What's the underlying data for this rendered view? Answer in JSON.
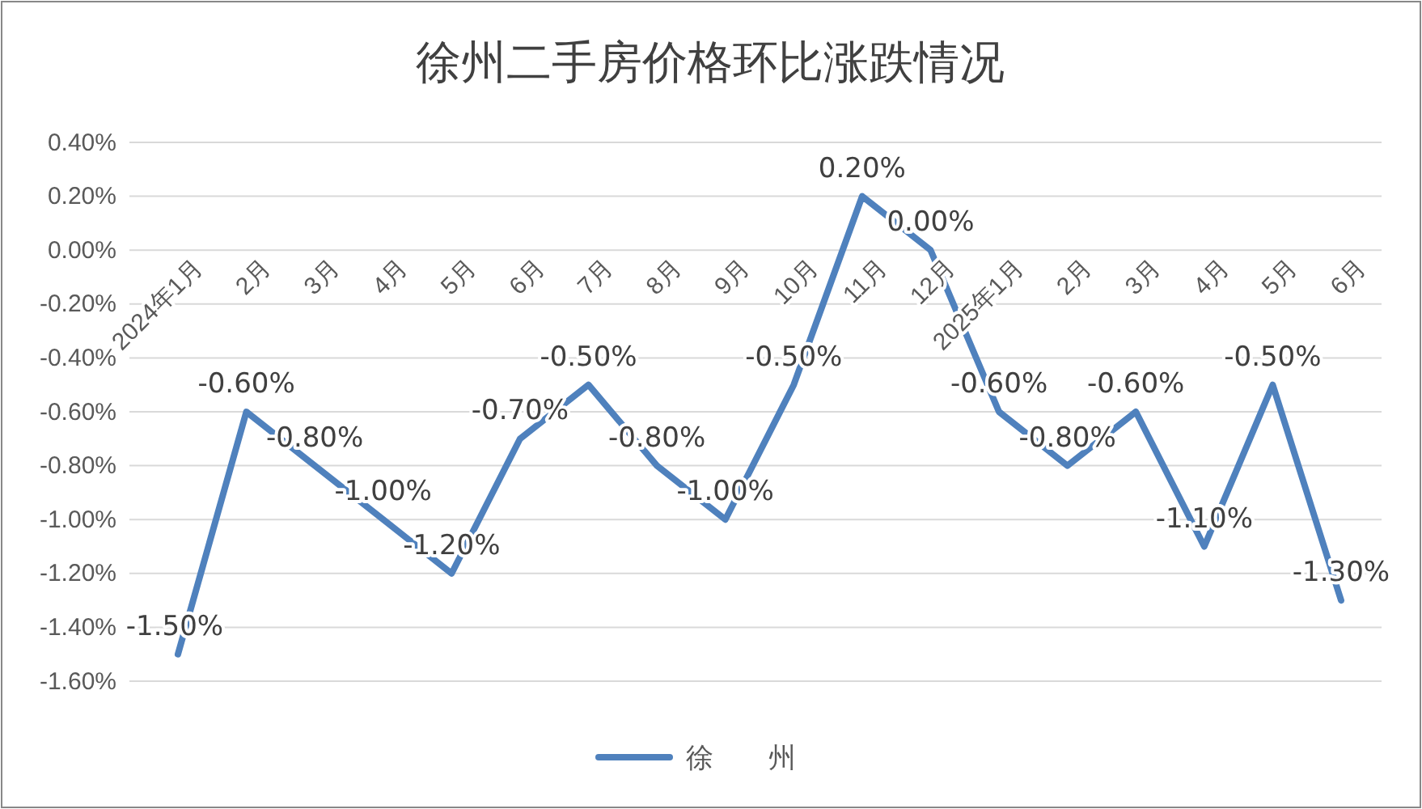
{
  "chart_data": {
    "type": "line",
    "title": "徐州二手房价格环比涨跌情况",
    "categories": [
      "2024年1月",
      "2月",
      "3月",
      "4月",
      "5月",
      "6月",
      "7月",
      "8月",
      "9月",
      "10月",
      "11月",
      "12月",
      "2025年1月",
      "2月",
      "3月",
      "4月",
      "5月",
      "6月"
    ],
    "series": [
      {
        "name": "徐　　州",
        "color": "#4f81bd",
        "values": [
          -1.5,
          -0.6,
          -0.8,
          -1.0,
          -1.2,
          -0.7,
          -0.5,
          -0.8,
          -1.0,
          -0.5,
          0.2,
          0.0,
          -0.6,
          -0.8,
          -0.6,
          -1.1,
          -0.5,
          -1.3
        ],
        "value_labels": [
          "-1.50%",
          "-0.60%",
          "-0.80%",
          "-1.00%",
          "-1.20%",
          "-0.70%",
          "-0.50%",
          "-0.80%",
          "-1.00%",
          "-0.50%",
          "0.20%",
          "0.00%",
          "-0.60%",
          "-0.80%",
          "-0.60%",
          "-1.10%",
          "-0.50%",
          "-1.30%"
        ]
      }
    ],
    "ylim": [
      -1.6,
      0.4
    ],
    "yticks": [
      {
        "value": 0.4,
        "label": "0.40%"
      },
      {
        "value": 0.2,
        "label": "0.20%"
      },
      {
        "value": 0,
        "label": "0.00%"
      },
      {
        "value": -0.2,
        "label": "-0.20%"
      },
      {
        "value": -0.4,
        "label": "-0.40%"
      },
      {
        "value": -0.6,
        "label": "-0.60%"
      },
      {
        "value": -0.8,
        "label": "-0.80%"
      },
      {
        "value": -1.0,
        "label": "-1.00%"
      },
      {
        "value": -1.2,
        "label": "-1.20%"
      },
      {
        "value": -1.4,
        "label": "-1.40%"
      },
      {
        "value": -1.6,
        "label": "-1.60%"
      }
    ],
    "grid": "y",
    "legend": "bottom",
    "marker": "none",
    "line_style": "solid"
  }
}
